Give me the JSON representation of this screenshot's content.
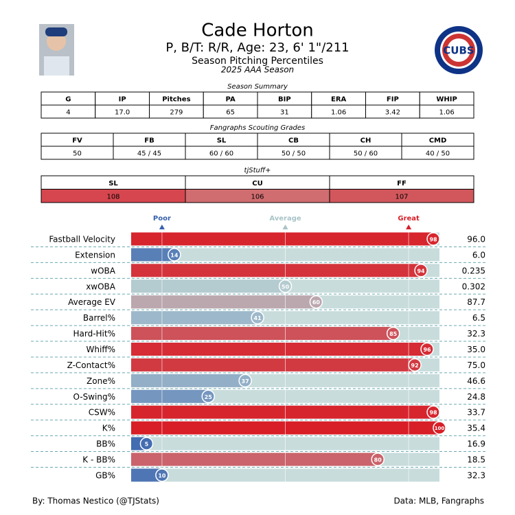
{
  "header": {
    "title": "Cade Horton",
    "subtitle": "P, B/T: R/R, Age: 23, 6' 1\"/211",
    "subtitle2": "Season Pitching Percentiles",
    "subtitle3": "2025 AAA Season",
    "logo_text": "CUBS"
  },
  "tables": [
    {
      "caption": "Season Summary",
      "columns": [
        "G",
        "IP",
        "Pitches",
        "PA",
        "BIP",
        "ERA",
        "FIP",
        "WHIP"
      ],
      "rows": [
        [
          "4",
          "17.0",
          "279",
          "65",
          "31",
          "1.06",
          "3.42",
          "1.06"
        ]
      ]
    },
    {
      "caption": "Fangraphs Scouting Grades",
      "columns": [
        "FV",
        "FB",
        "SL",
        "CB",
        "CH",
        "CMD"
      ],
      "rows": [
        [
          "50",
          "45 / 45",
          "60 / 60",
          "50 / 50",
          "50 / 60",
          "40 / 50"
        ]
      ]
    },
    {
      "caption": "tjStuff+",
      "columns": [
        "SL",
        "CU",
        "FF"
      ],
      "rows": [
        [
          "108",
          "106",
          "107"
        ]
      ],
      "cell_colors": [
        "#d5464e",
        "#d06d70",
        "#d1575c"
      ]
    }
  ],
  "chart_data": {
    "type": "bar",
    "orientation": "horizontal",
    "categories": [
      "Fastball Velocity",
      "Extension",
      "wOBA",
      "xwOBA",
      "Average EV",
      "Barrel%",
      "Hard-Hit%",
      "Whiff%",
      "Z-Contact%",
      "Zone%",
      "O-Swing%",
      "CSW%",
      "K%",
      "BB%",
      "K - BB%",
      "GB%"
    ],
    "values": [
      98,
      14,
      94,
      50,
      60,
      41,
      85,
      96,
      92,
      37,
      25,
      98,
      100,
      5,
      80,
      10
    ],
    "stats": [
      "96.0",
      "6.0",
      "0.235",
      "0.302",
      "87.7",
      "6.5",
      "32.3",
      "35.0",
      "75.0",
      "46.6",
      "24.8",
      "33.7",
      "35.4",
      "16.9",
      "18.5",
      "32.3"
    ],
    "xlim": [
      0,
      100
    ],
    "references": [
      {
        "label": "Poor",
        "value": 10,
        "color": "#3661ad"
      },
      {
        "label": "Average",
        "value": 50,
        "color": "#a9c4c8"
      },
      {
        "label": "Great",
        "value": 90,
        "color": "#d81e27"
      }
    ],
    "colormap": [
      "#3661ad",
      "#b4cbd0",
      "#d81e27"
    ],
    "track_color": "#c8dcdc"
  },
  "footer": {
    "left": "By: Thomas Nestico (@TJStats)",
    "right": "Data: MLB, Fangraphs"
  }
}
